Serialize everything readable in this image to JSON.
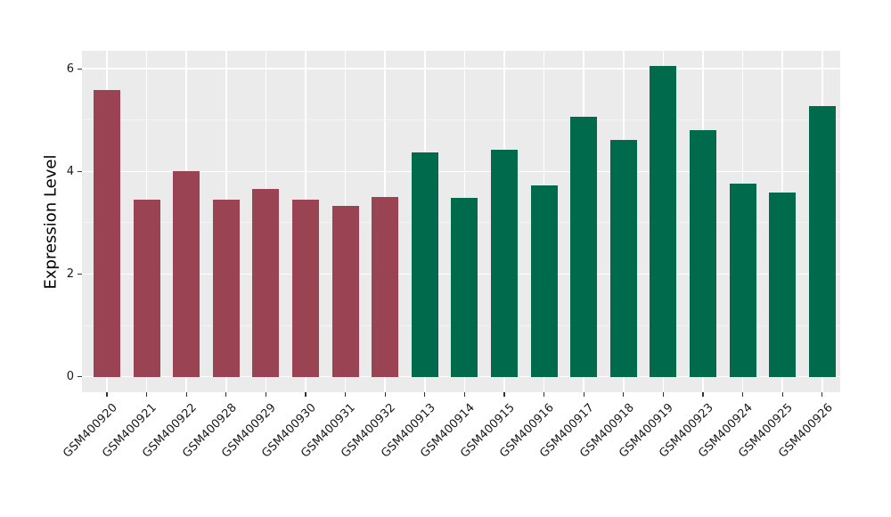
{
  "figure": {
    "background_color": "#ffffff",
    "panel_background_color": "#ebebeb",
    "grid_major_color": "#ffffff",
    "grid_minor_color": "#f4f4f4",
    "axis_text_color": "#1a1a1a",
    "tick_mark_color": "#333333"
  },
  "chart_data": {
    "type": "bar",
    "ylabel": "Expression Level",
    "xlabel": "",
    "ylim": [
      -0.3,
      6.35
    ],
    "yticks": [
      0,
      2,
      4,
      6
    ],
    "grid": true,
    "legend_position": "none",
    "categories": [
      "GSM400920",
      "GSM400921",
      "GSM400922",
      "GSM400928",
      "GSM400929",
      "GSM400930",
      "GSM400931",
      "GSM400932",
      "GSM400913",
      "GSM400914",
      "GSM400915",
      "GSM400916",
      "GSM400917",
      "GSM400918",
      "GSM400919",
      "GSM400923",
      "GSM400924",
      "GSM400925",
      "GSM400926"
    ],
    "values": [
      5.58,
      3.45,
      4.0,
      3.45,
      3.66,
      3.45,
      3.33,
      3.51,
      4.37,
      3.48,
      4.43,
      3.73,
      5.07,
      4.61,
      6.06,
      4.8,
      3.76,
      3.59,
      5.27
    ],
    "groups": [
      "group1",
      "group1",
      "group1",
      "group1",
      "group1",
      "group1",
      "group1",
      "group1",
      "group2",
      "group2",
      "group2",
      "group2",
      "group2",
      "group2",
      "group2",
      "group2",
      "group2",
      "group2",
      "group2"
    ],
    "group_colors": {
      "group1": "#9a4352",
      "group2": "#006b4c"
    }
  }
}
